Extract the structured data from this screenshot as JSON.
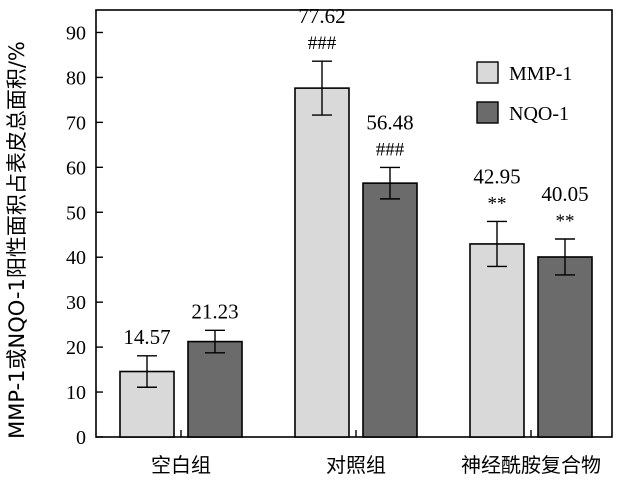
{
  "chart_data": {
    "type": "bar",
    "ylabel": "MMP-1或NQO-1阳性面积占表皮总面积/%",
    "ylim": [
      0,
      95
    ],
    "yticks": [
      0,
      10,
      20,
      30,
      40,
      50,
      60,
      70,
      80,
      90
    ],
    "grid": false,
    "legend_position": "top-right",
    "categories": [
      "空白组",
      "对照组",
      "神经酰胺复合物"
    ],
    "series": [
      {
        "name": "MMP-1",
        "color": "#d9d9d9",
        "values": [
          14.57,
          77.62,
          42.95
        ],
        "error": [
          3.5,
          6.0,
          5.0
        ],
        "value_labels": [
          "14.57",
          "77.62",
          "42.95"
        ],
        "marks": [
          "",
          "###",
          "**"
        ]
      },
      {
        "name": "NQO-1",
        "color": "#6b6b6b",
        "values": [
          21.23,
          56.48,
          40.05
        ],
        "error": [
          2.5,
          3.5,
          4.0
        ],
        "value_labels": [
          "21.23",
          "56.48",
          "40.05"
        ],
        "marks": [
          "",
          "###",
          "**"
        ]
      }
    ]
  }
}
